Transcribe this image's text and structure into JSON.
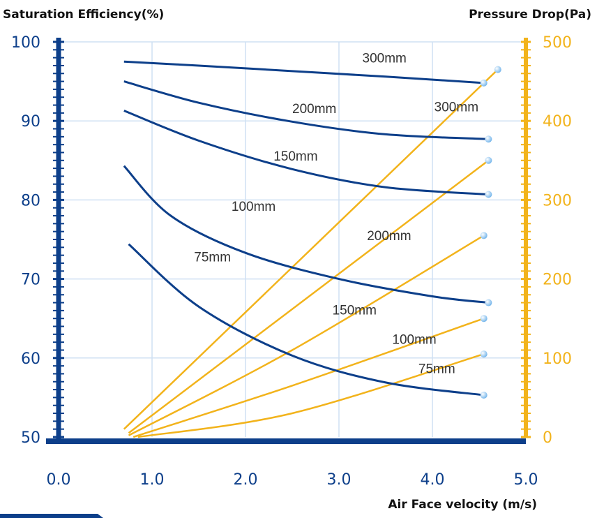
{
  "colors": {
    "efficiency_series": "#0d3f8a",
    "pressure_series": "#f2b31b",
    "grid": "#cfe0f3",
    "marker": "#79b8ec"
  },
  "footer_tab_color": "#0d3f8a",
  "chart_data": {
    "type": "line",
    "xlabel": "Air Face velocity (m/s)",
    "ylabel_left": "Saturation Efficiency(%)",
    "ylabel_right": "Pressure Drop(Pa)",
    "xlim": [
      0.0,
      5.0
    ],
    "ylim_left": [
      50,
      100
    ],
    "ylim_right": [
      0,
      500
    ],
    "x_ticks": [
      "0.0",
      "1.0",
      "2.0",
      "3.0",
      "4.0",
      "5.0"
    ],
    "y_left_ticks": [
      "50",
      "60",
      "70",
      "80",
      "90",
      "100"
    ],
    "y_right_ticks": [
      "0",
      "100",
      "200",
      "300",
      "400",
      "500"
    ],
    "grid": true,
    "efficiency_series": [
      {
        "label": "300mm",
        "x": [
          0.7,
          1.5,
          2.5,
          3.5,
          4.55
        ],
        "y": [
          97.5,
          97.0,
          96.3,
          95.6,
          94.8
        ],
        "label_x": 3.25,
        "label_y": 97.4
      },
      {
        "label": "200mm",
        "x": [
          0.7,
          1.5,
          2.5,
          3.5,
          4.6
        ],
        "y": [
          95.0,
          92.3,
          89.9,
          88.3,
          87.7
        ],
        "label_x": 2.5,
        "label_y": 91.0
      },
      {
        "label": "150mm",
        "x": [
          0.7,
          1.5,
          2.5,
          3.5,
          4.6
        ],
        "y": [
          91.3,
          87.5,
          83.9,
          81.6,
          80.7
        ],
        "label_x": 2.3,
        "label_y": 85.0
      },
      {
        "label": "100mm",
        "x": [
          0.7,
          1.2,
          2.0,
          3.0,
          4.0,
          4.6
        ],
        "y": [
          84.3,
          78.0,
          73.3,
          70.0,
          67.8,
          67.0
        ],
        "label_x": 1.85,
        "label_y": 78.6
      },
      {
        "label": "75mm",
        "x": [
          0.75,
          1.5,
          2.5,
          3.5,
          4.55
        ],
        "y": [
          74.4,
          66.5,
          60.3,
          56.9,
          55.3
        ],
        "label_x": 1.45,
        "label_y": 72.2
      }
    ],
    "pressure_series": [
      {
        "label": "300mm",
        "x": [
          0.7,
          4.7
        ],
        "y": [
          10,
          465
        ],
        "label_x": 4.02,
        "label_y": 412
      },
      {
        "label": "200mm",
        "x": [
          0.75,
          4.6
        ],
        "y": [
          5,
          350
        ],
        "label_x": 3.3,
        "label_y": 249
      },
      {
        "label": "150mm",
        "x": [
          0.75,
          2.5,
          4.55
        ],
        "y": [
          2,
          110,
          255
        ],
        "label_x": 2.93,
        "label_y": 155
      },
      {
        "label": "100mm",
        "x": [
          0.8,
          2.5,
          4.55
        ],
        "y": [
          0,
          65,
          150
        ],
        "label_x": 3.57,
        "label_y": 118
      },
      {
        "label": "75mm",
        "x": [
          0.85,
          2.5,
          4.55
        ],
        "y": [
          0,
          30,
          105
        ],
        "label_x": 3.85,
        "label_y": 81
      }
    ]
  }
}
